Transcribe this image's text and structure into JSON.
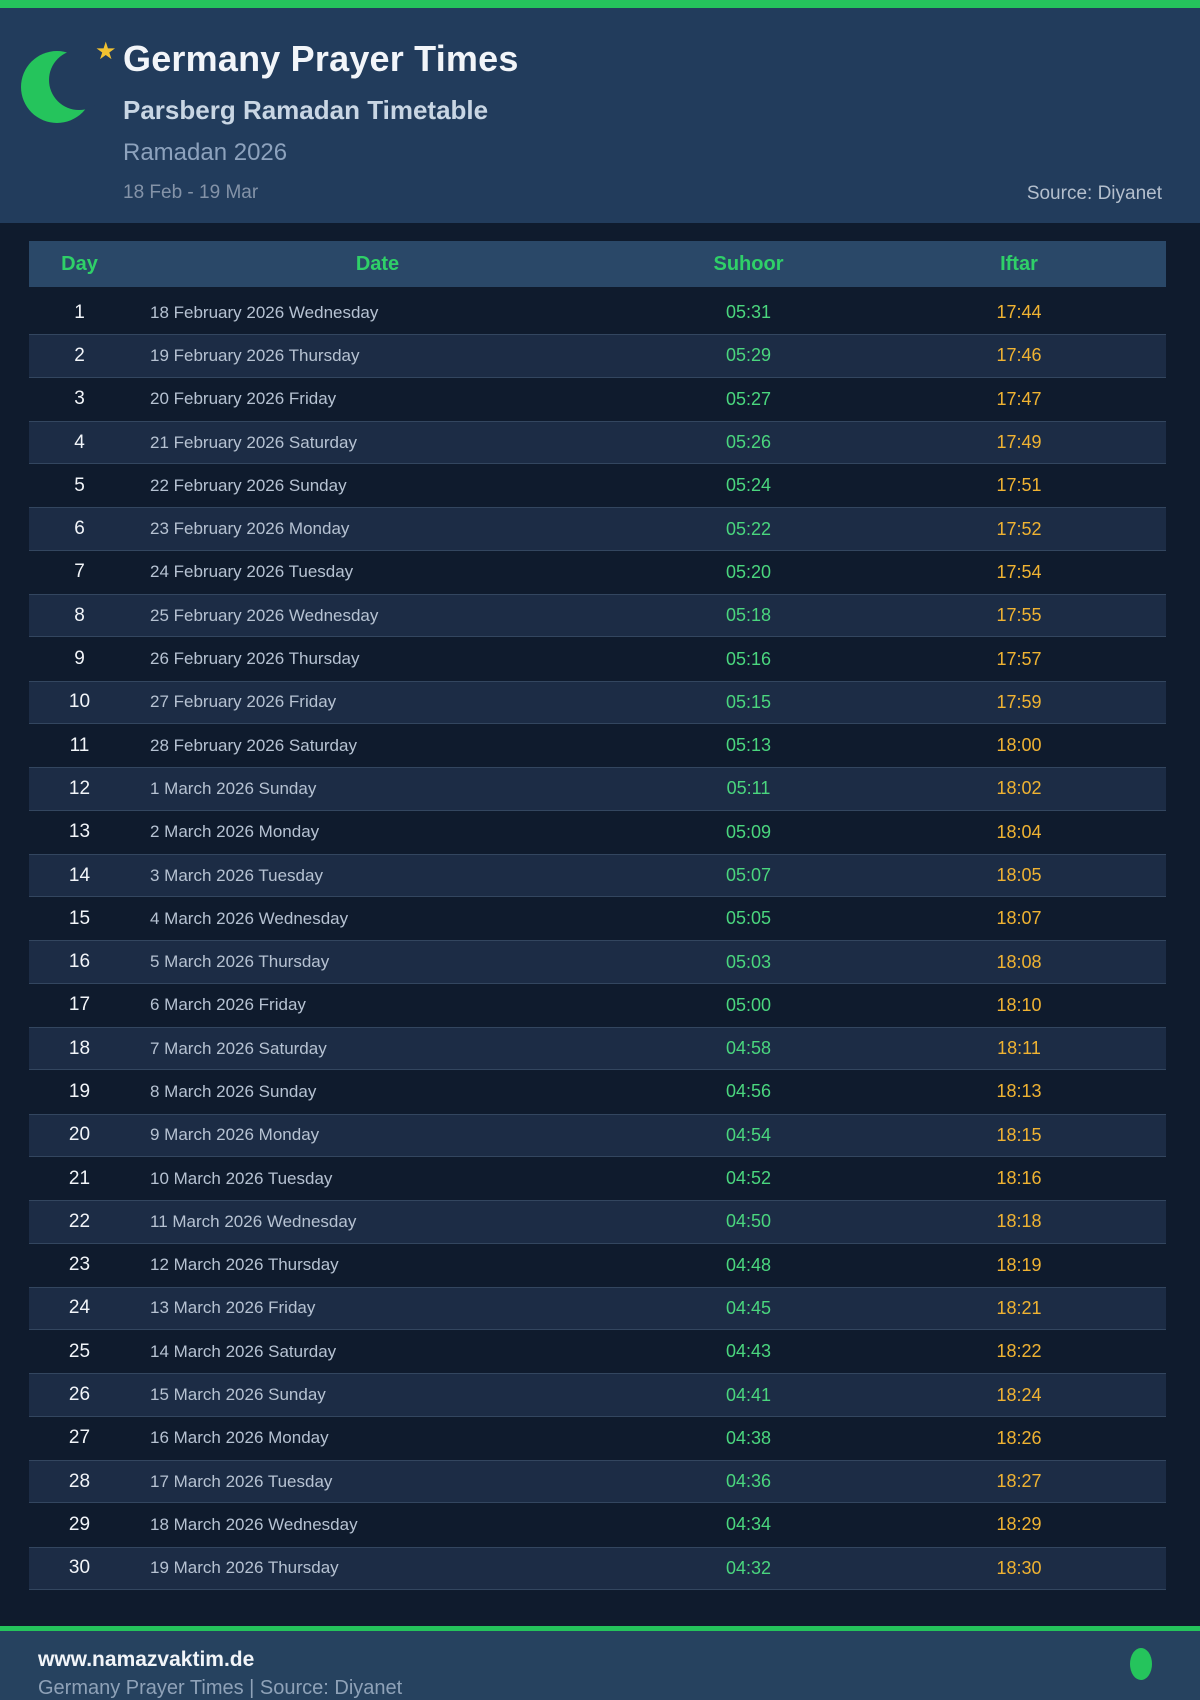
{
  "header": {
    "title": "Germany Prayer Times",
    "subtitle": "Parsberg Ramadan Timetable",
    "season": "Ramadan 2026",
    "date_range": "18 Feb - 19 Mar",
    "source": "Source: Diyanet",
    "moon_icon": "crescent-moon-icon",
    "star_icon": "star-icon",
    "star_glyph": "★"
  },
  "table": {
    "columns": [
      "Day",
      "Date",
      "Suhoor",
      "Iftar"
    ],
    "rows": [
      [
        1,
        "18 February 2026 Wednesday",
        "05:31",
        "17:44"
      ],
      [
        2,
        "19 February 2026 Thursday",
        "05:29",
        "17:46"
      ],
      [
        3,
        "20 February 2026 Friday",
        "05:27",
        "17:47"
      ],
      [
        4,
        "21 February 2026 Saturday",
        "05:26",
        "17:49"
      ],
      [
        5,
        "22 February 2026 Sunday",
        "05:24",
        "17:51"
      ],
      [
        6,
        "23 February 2026 Monday",
        "05:22",
        "17:52"
      ],
      [
        7,
        "24 February 2026 Tuesday",
        "05:20",
        "17:54"
      ],
      [
        8,
        "25 February 2026 Wednesday",
        "05:18",
        "17:55"
      ],
      [
        9,
        "26 February 2026 Thursday",
        "05:16",
        "17:57"
      ],
      [
        10,
        "27 February 2026 Friday",
        "05:15",
        "17:59"
      ],
      [
        11,
        "28 February 2026 Saturday",
        "05:13",
        "18:00"
      ],
      [
        12,
        "1 March 2026 Sunday",
        "05:11",
        "18:02"
      ],
      [
        13,
        "2 March 2026 Monday",
        "05:09",
        "18:04"
      ],
      [
        14,
        "3 March 2026 Tuesday",
        "05:07",
        "18:05"
      ],
      [
        15,
        "4 March 2026 Wednesday",
        "05:05",
        "18:07"
      ],
      [
        16,
        "5 March 2026 Thursday",
        "05:03",
        "18:08"
      ],
      [
        17,
        "6 March 2026 Friday",
        "05:00",
        "18:10"
      ],
      [
        18,
        "7 March 2026 Saturday",
        "04:58",
        "18:11"
      ],
      [
        19,
        "8 March 2026 Sunday",
        "04:56",
        "18:13"
      ],
      [
        20,
        "9 March 2026 Monday",
        "04:54",
        "18:15"
      ],
      [
        21,
        "10 March 2026 Tuesday",
        "04:52",
        "18:16"
      ],
      [
        22,
        "11 March 2026 Wednesday",
        "04:50",
        "18:18"
      ],
      [
        23,
        "12 March 2026 Thursday",
        "04:48",
        "18:19"
      ],
      [
        24,
        "13 March 2026 Friday",
        "04:45",
        "18:21"
      ],
      [
        25,
        "14 March 2026 Saturday",
        "04:43",
        "18:22"
      ],
      [
        26,
        "15 March 2026 Sunday",
        "04:41",
        "18:24"
      ],
      [
        27,
        "16 March 2026 Monday",
        "04:38",
        "18:26"
      ],
      [
        28,
        "17 March 2026 Tuesday",
        "04:36",
        "18:27"
      ],
      [
        29,
        "18 March 2026 Wednesday",
        "04:34",
        "18:29"
      ],
      [
        30,
        "19 March 2026 Thursday",
        "04:32",
        "18:30"
      ]
    ]
  },
  "footer": {
    "website": "www.namazvaktim.de",
    "tagline": "Germany Prayer Times | Source: Diyanet",
    "dot_icon": "green-dot-icon"
  },
  "colors": {
    "accent_green": "#25c45c",
    "table_header_green": "#2fd068",
    "suhoor_green": "#4ad67e",
    "iftar_amber": "#f0b332",
    "page_background": "#0f1b2d",
    "header_background": "#223c5c",
    "table_header_background": "#2a4868",
    "row_even_background": "#1c2c45",
    "footer_background": "#26425f",
    "star_gold": "#f2c231"
  }
}
